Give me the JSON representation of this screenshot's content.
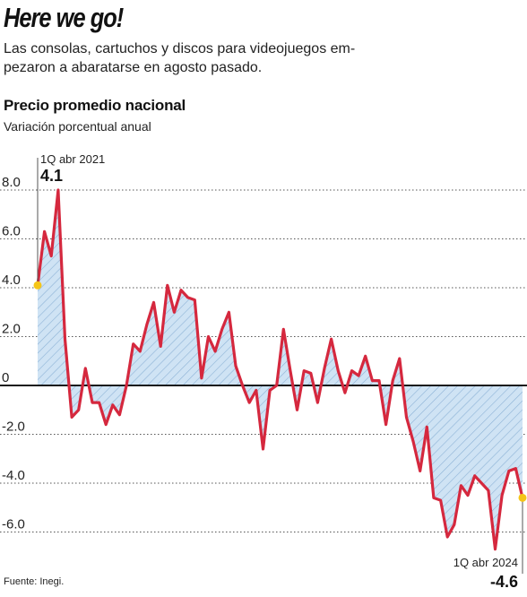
{
  "headline": "Here we go!",
  "deck": "Las consolas, cartuchos y discos para videojuegos em-pezaron a abaratarse en agosto pasado.",
  "source": "Fuente: Inegi.",
  "colors": {
    "line": "#d5283e",
    "area": "#cfe3f4",
    "hatch": "#8db3d6",
    "marker": "#f5c518",
    "grid": "#555555"
  },
  "chart_data": {
    "type": "area",
    "title": "Precio promedio nacional",
    "subtitle": "Variación porcentual anual",
    "xlabel": "",
    "ylabel": "",
    "ylim": [
      -7.4,
      8.6
    ],
    "yticks": [
      {
        "value": 8,
        "label": "8.0"
      },
      {
        "value": 6,
        "label": "6.0"
      },
      {
        "value": 4,
        "label": "4.0"
      },
      {
        "value": 2,
        "label": "2.0"
      },
      {
        "value": 0,
        "label": "0"
      },
      {
        "value": -2,
        "label": "-2.0"
      },
      {
        "value": -4,
        "label": "-4.0"
      },
      {
        "value": -6,
        "label": "-6.0"
      }
    ],
    "grid": true,
    "x_start_label": "1Q abr 2021",
    "x_end_label": "1Q abr 2024",
    "first_value_label": "4.1",
    "last_value_label": "-4.6",
    "series": [
      {
        "values": [
          4.1,
          6.3,
          5.3,
          8.0,
          1.9,
          -1.3,
          -1.0,
          0.7,
          -0.7,
          -0.7,
          -1.6,
          -0.8,
          -1.2,
          0.0,
          1.7,
          1.4,
          2.5,
          3.4,
          1.6,
          4.1,
          3.0,
          3.9,
          3.6,
          3.5,
          0.3,
          2.0,
          1.4,
          2.3,
          3.0,
          0.8,
          0.0,
          -0.7,
          -0.2,
          -2.6,
          -0.2,
          0.0,
          2.3,
          0.6,
          -1.0,
          0.6,
          0.5,
          -0.7,
          0.7,
          1.9,
          0.6,
          -0.3,
          0.6,
          0.4,
          1.2,
          0.2,
          0.2,
          -1.6,
          0.2,
          1.1,
          -1.3,
          -2.3,
          -3.5,
          -1.7,
          -4.6,
          -4.7,
          -6.2,
          -5.7,
          -4.1,
          -4.5,
          -3.7,
          -4.0,
          -4.3,
          -6.7,
          -4.5,
          -3.5,
          -3.4,
          -4.6
        ]
      }
    ]
  }
}
